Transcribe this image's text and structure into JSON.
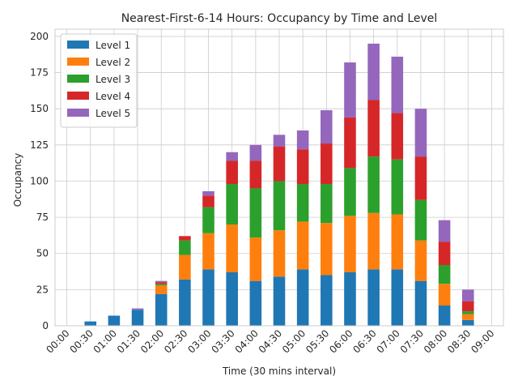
{
  "chart_data": {
    "type": "bar",
    "stacked": true,
    "title": "Nearest-First-6-14 Hours: Occupancy by Time and Level",
    "xlabel": "Time (30 mins interval)",
    "ylabel": "Occupancy",
    "ylim": [
      0,
      205
    ],
    "yticks": [
      0,
      25,
      50,
      75,
      100,
      125,
      150,
      175,
      200
    ],
    "grid": true,
    "legend": "top-left",
    "categories": [
      "00:00",
      "00:30",
      "01:00",
      "01:30",
      "02:00",
      "02:30",
      "03:00",
      "03:30",
      "04:00",
      "04:30",
      "05:00",
      "05:30",
      "06:00",
      "06:30",
      "07:00",
      "07:30",
      "08:00",
      "08:30",
      "09:00"
    ],
    "series": [
      {
        "name": "Level 1",
        "color": "#1f77b4",
        "values": [
          0,
          3,
          7,
          11,
          22,
          32,
          39,
          37,
          31,
          34,
          39,
          35,
          37,
          39,
          39,
          31,
          14,
          4,
          0
        ]
      },
      {
        "name": "Level 2",
        "color": "#ff7f0e",
        "values": [
          0,
          0,
          0,
          0,
          6,
          17,
          25,
          33,
          30,
          32,
          33,
          36,
          39,
          39,
          38,
          28,
          15,
          4,
          0
        ]
      },
      {
        "name": "Level 3",
        "color": "#2ca02c",
        "values": [
          0,
          0,
          0,
          0,
          1,
          10,
          18,
          28,
          34,
          34,
          26,
          27,
          33,
          39,
          38,
          28,
          13,
          2,
          0
        ]
      },
      {
        "name": "Level 4",
        "color": "#d62728",
        "values": [
          0,
          0,
          0,
          0,
          1,
          3,
          8,
          16,
          19,
          24,
          24,
          28,
          35,
          39,
          32,
          30,
          16,
          7,
          0
        ]
      },
      {
        "name": "Level 5",
        "color": "#9467bd",
        "values": [
          0,
          0,
          0,
          1,
          1,
          0,
          3,
          6,
          11,
          8,
          13,
          23,
          38,
          39,
          39,
          33,
          15,
          8,
          0
        ]
      }
    ]
  }
}
